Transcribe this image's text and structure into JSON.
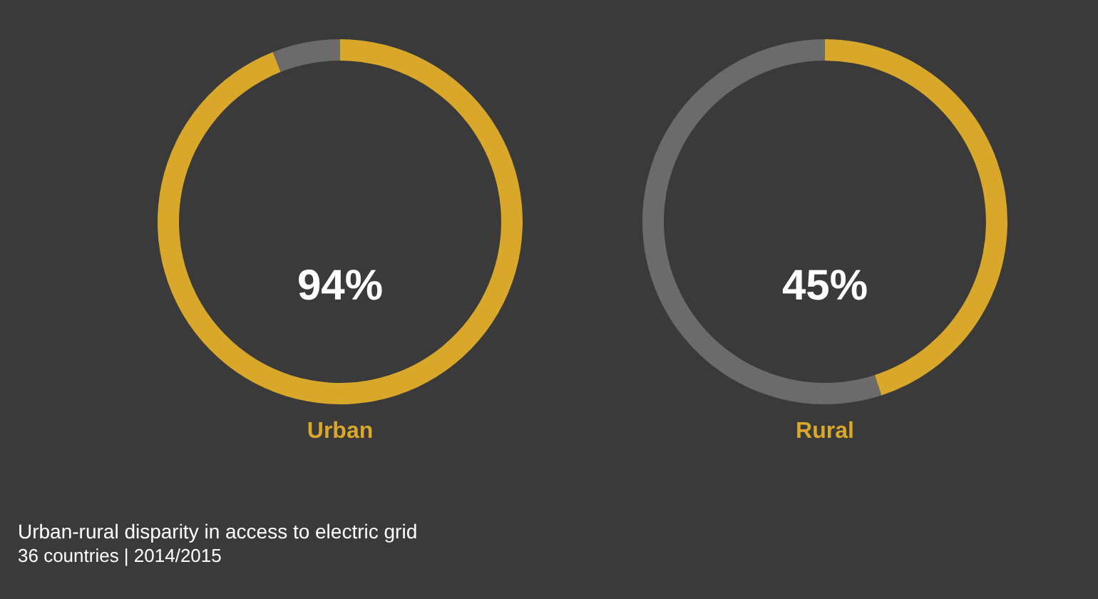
{
  "chart_data": [
    {
      "type": "donut",
      "title": "Urban",
      "categories": [
        null,
        null
      ],
      "values": [
        94,
        6
      ],
      "colors": [
        "#d9a82a",
        "#6b6b6b"
      ],
      "annotations": [
        "94%"
      ]
    },
    {
      "type": "donut",
      "title": "Rural",
      "categories": [
        null,
        null
      ],
      "values": [
        45,
        55
      ],
      "colors": [
        "#d9a82a",
        "#6b6b6b"
      ],
      "annotations": [
        "45%"
      ]
    },
    {
      "type": "other",
      "title": "Urban-rural disparity in access to electric grid",
      "subtitle": "36 countries | 2014/2015"
    }
  ]
}
